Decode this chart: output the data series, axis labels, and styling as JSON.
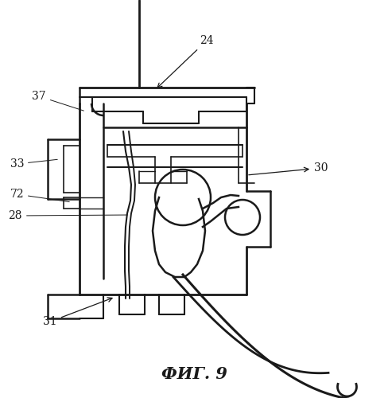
{
  "title": "ФИГ. 9",
  "title_fontsize": 15,
  "background_color": "#ffffff",
  "line_color": "#1a1a1a"
}
